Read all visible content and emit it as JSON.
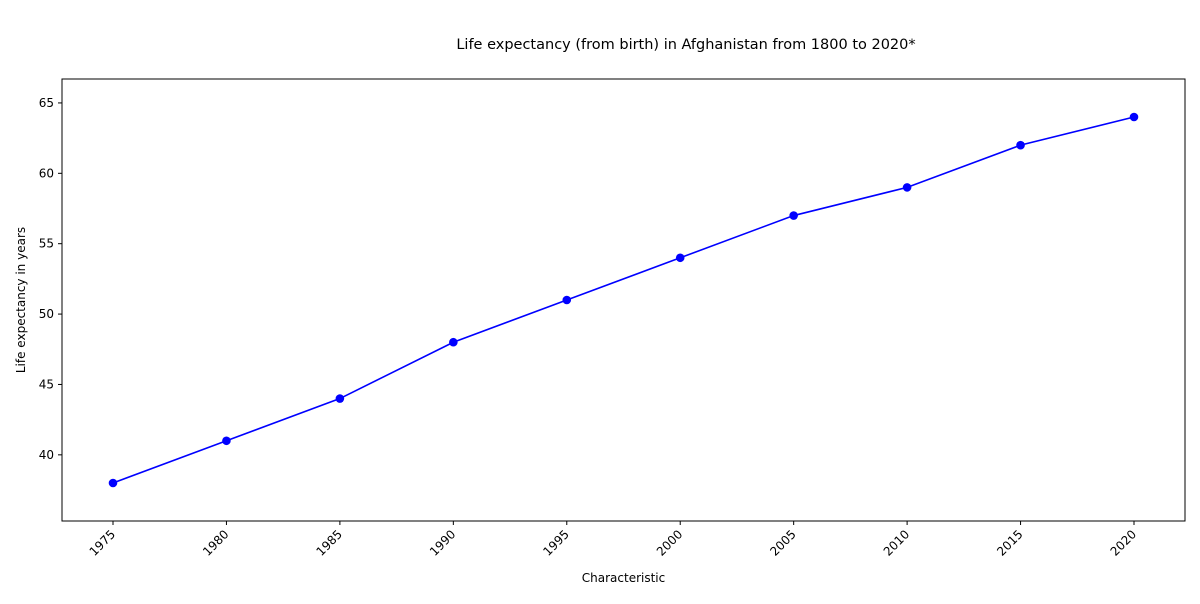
{
  "chart_data": {
    "type": "line",
    "title": "Life expectancy (from birth) in Afghanistan  from 1800 to 2020*",
    "xlabel": "Characteristic",
    "ylabel": "Life expectancy in years",
    "x": [
      "1975",
      "1980",
      "1985",
      "1990",
      "1995",
      "2000",
      "2005",
      "2010",
      "2015",
      "2020"
    ],
    "series": [
      {
        "values": [
          38,
          41,
          44,
          48,
          51,
          54,
          57,
          59,
          62,
          64
        ],
        "color": "#0000ff"
      }
    ],
    "ylim": [
      35.3,
      66.7
    ],
    "yticks": [
      40,
      45,
      50,
      55,
      60,
      65
    ],
    "grid": false,
    "legend": "none",
    "marker": "circle"
  }
}
